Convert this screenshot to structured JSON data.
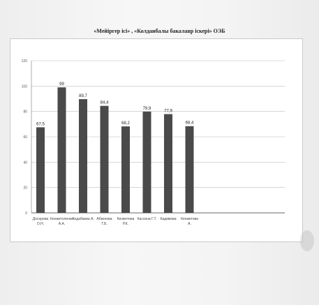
{
  "chart_data": {
    "type": "bar",
    "title": "«Мейіргер ісі» , «Колданбалы бакалавр іскері» ОЭБ",
    "categories": [
      [
        "Досорева",
        "О.Н."
      ],
      [
        "Кенжетоленко",
        "А.А."
      ],
      [
        "Андабаева А."
      ],
      [
        "Абкенова",
        "Т.Б."
      ],
      [
        "Кенжетова",
        "Р.К."
      ],
      [
        "Кассина Г.Т."
      ],
      [
        "Кадимова"
      ],
      [
        "Кенжетова",
        "А."
      ]
    ],
    "values": [
      67.5,
      99,
      89.7,
      84.4,
      68.2,
      79.9,
      77.9,
      68.4
    ],
    "value_labels": [
      "67,5",
      "99",
      "89,7",
      "84,4",
      "68,2",
      "79,9",
      "77,9",
      "68,4"
    ],
    "ylim": [
      0,
      120
    ],
    "yticks": [
      0,
      20,
      40,
      60,
      80,
      100,
      120
    ],
    "grid": true,
    "bar_color": "#4a4a4a"
  }
}
